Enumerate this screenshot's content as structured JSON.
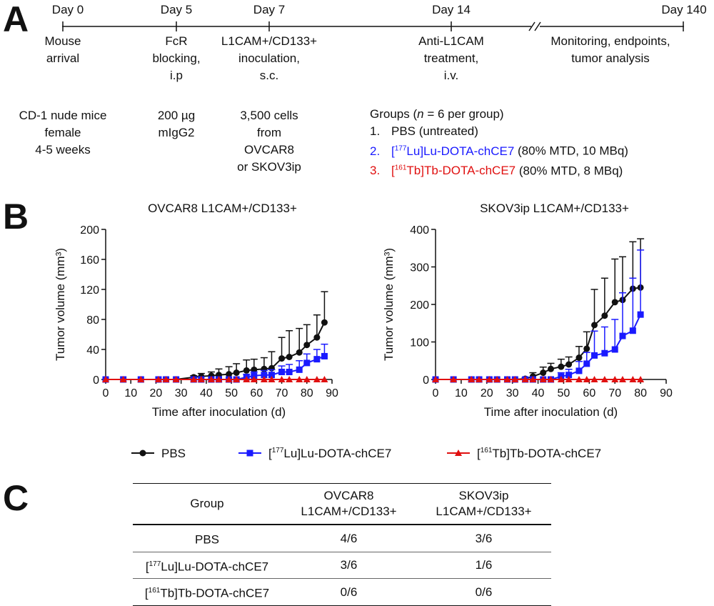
{
  "panels": {
    "a": "A",
    "b": "B",
    "c": "C"
  },
  "timeline": {
    "days": [
      {
        "label": "Day 0",
        "desc": [
          "Mouse",
          "arrival"
        ]
      },
      {
        "label": "Day 5",
        "desc": [
          "FcR",
          "blocking,",
          "i.p"
        ]
      },
      {
        "label": "Day 7",
        "desc": [
          "L1CAM+/CD133+",
          "inoculation,",
          "s.c."
        ]
      },
      {
        "label": "Day 14",
        "desc": [
          "Anti-L1CAM",
          "treatment,",
          "i.v."
        ]
      },
      {
        "label": "Day 140",
        "desc": [
          "Monitoring, endpoints,",
          "tumor analysis"
        ]
      }
    ],
    "break_mark": "//"
  },
  "cohort": {
    "mice": [
      "CD-1 nude mice",
      "female",
      "4-5 weeks"
    ],
    "antibody": [
      "200 µg",
      "mIgG2"
    ],
    "cells": [
      "3,500 cells",
      "from",
      "OVCAR8",
      "or SKOV3ip"
    ]
  },
  "groups": {
    "title_pre": "Groups (",
    "title_n": "n",
    "title_post": " = 6 per group)",
    "items": [
      {
        "num": "1.",
        "text": "PBS (untreated)",
        "color": "#111111"
      },
      {
        "num": "2.",
        "pre": "[",
        "sup": "177",
        "name": "Lu]Lu-DOTA-chCE7",
        "note": " (80% MTD, 10 MBq)",
        "color": "#1a1aff"
      },
      {
        "num": "3.",
        "pre": "[",
        "sup": "161",
        "name": "Tb]Tb-DOTA-chCE7",
        "note": " (80% MTD, 8 MBq)",
        "color": "#e01010"
      }
    ]
  },
  "chart_data": [
    {
      "type": "line",
      "title": "OVCAR8 L1CAM+/CD133+",
      "xlabel": "Time after inoculation (d)",
      "ylabel": "Tumor volume (mm³)",
      "xlim": [
        0,
        90
      ],
      "ylim": [
        0,
        200
      ],
      "xticks": [
        0,
        10,
        20,
        30,
        40,
        50,
        60,
        70,
        80,
        90
      ],
      "yticks": [
        0,
        40,
        80,
        120,
        160,
        200
      ],
      "series": [
        {
          "name": "PBS",
          "color": "#111111",
          "marker": "circle",
          "x": [
            0,
            7,
            14,
            21,
            24,
            28,
            35,
            38,
            42,
            45,
            49,
            52,
            56,
            59,
            63,
            66,
            70,
            73,
            77,
            80,
            84,
            87
          ],
          "y": [
            0,
            0,
            0,
            0,
            0,
            0,
            3,
            4,
            5,
            6,
            7,
            9,
            12,
            13,
            14,
            15,
            28,
            30,
            36,
            46,
            56,
            76
          ],
          "err": [
            0,
            0,
            0,
            0,
            0,
            0,
            2,
            4,
            5,
            8,
            10,
            12,
            14,
            14,
            15,
            22,
            28,
            35,
            32,
            27,
            30,
            41
          ]
        },
        {
          "name": "[177Lu]Lu-DOTA-chCE7",
          "color": "#1a1aff",
          "marker": "square",
          "x": [
            0,
            7,
            14,
            21,
            24,
            28,
            35,
            38,
            42,
            45,
            49,
            52,
            56,
            59,
            63,
            66,
            70,
            73,
            77,
            80,
            84,
            87
          ],
          "y": [
            0,
            0,
            0,
            0,
            0,
            0,
            0,
            0,
            0,
            0,
            0,
            0,
            3,
            5,
            6,
            6,
            10,
            10,
            13,
            22,
            27,
            31
          ],
          "err": [
            0,
            0,
            0,
            0,
            0,
            0,
            0,
            0,
            0,
            0,
            0,
            0,
            4,
            5,
            6,
            7,
            8,
            10,
            12,
            12,
            13,
            16
          ]
        },
        {
          "name": "[161Tb]Tb-DOTA-chCE7",
          "color": "#e01010",
          "marker": "triangle",
          "x": [
            0,
            7,
            14,
            21,
            24,
            28,
            35,
            38,
            42,
            45,
            49,
            52,
            56,
            59,
            63,
            66,
            70,
            73,
            77,
            80,
            84,
            87
          ],
          "y": [
            0,
            0,
            0,
            0,
            0,
            0,
            0,
            0,
            0,
            0,
            0,
            0,
            0,
            0,
            0,
            0,
            0,
            0,
            0,
            0,
            0,
            0
          ],
          "err": [
            0,
            0,
            0,
            0,
            0,
            0,
            0,
            0,
            0,
            0,
            0,
            0,
            0,
            0,
            0,
            0,
            0,
            0,
            0,
            0,
            0,
            0
          ]
        }
      ]
    },
    {
      "type": "line",
      "title": "SKOV3ip L1CAM+/CD133+",
      "xlabel": "Time after inoculation (d)",
      "ylabel": "Tumor volume (mm³)",
      "xlim": [
        0,
        90
      ],
      "ylim": [
        0,
        400
      ],
      "xticks": [
        0,
        10,
        20,
        30,
        40,
        50,
        60,
        70,
        80,
        90
      ],
      "yticks": [
        0,
        100,
        200,
        300,
        400
      ],
      "series": [
        {
          "name": "PBS",
          "color": "#111111",
          "marker": "circle",
          "x": [
            0,
            7,
            14,
            17,
            21,
            24,
            28,
            31,
            35,
            38,
            42,
            45,
            49,
            52,
            56,
            59,
            62,
            66,
            70,
            73,
            77,
            80
          ],
          "y": [
            0,
            0,
            0,
            0,
            0,
            0,
            0,
            0,
            2,
            8,
            18,
            28,
            34,
            40,
            58,
            82,
            145,
            170,
            206,
            212,
            242,
            245
          ],
          "err": [
            0,
            0,
            0,
            0,
            0,
            0,
            0,
            0,
            3,
            10,
            15,
            15,
            20,
            20,
            30,
            45,
            95,
            100,
            115,
            115,
            125,
            130
          ]
        },
        {
          "name": "[177Lu]Lu-DOTA-chCE7",
          "color": "#1a1aff",
          "marker": "square",
          "x": [
            0,
            7,
            14,
            17,
            21,
            24,
            28,
            31,
            35,
            38,
            42,
            45,
            49,
            52,
            56,
            59,
            62,
            66,
            70,
            73,
            77,
            80
          ],
          "y": [
            0,
            0,
            0,
            0,
            0,
            0,
            0,
            0,
            0,
            0,
            0,
            0,
            8,
            12,
            23,
            42,
            64,
            70,
            80,
            116,
            130,
            173
          ],
          "err": [
            0,
            0,
            0,
            0,
            0,
            0,
            0,
            0,
            0,
            0,
            0,
            0,
            10,
            15,
            25,
            30,
            65,
            70,
            80,
            115,
            140,
            172
          ]
        },
        {
          "name": "[161Tb]Tb-DOTA-chCE7",
          "color": "#e01010",
          "marker": "triangle",
          "x": [
            0,
            7,
            14,
            17,
            21,
            24,
            28,
            31,
            35,
            38,
            42,
            45,
            49,
            52,
            56,
            59,
            62,
            66,
            70,
            73,
            77,
            80
          ],
          "y": [
            0,
            0,
            0,
            0,
            0,
            0,
            0,
            0,
            0,
            0,
            0,
            0,
            0,
            0,
            0,
            0,
            0,
            0,
            0,
            0,
            0,
            0
          ],
          "err": [
            0,
            0,
            0,
            0,
            0,
            0,
            0,
            0,
            0,
            0,
            0,
            0,
            0,
            0,
            0,
            0,
            0,
            0,
            0,
            0,
            0,
            0
          ]
        }
      ]
    }
  ],
  "legend": [
    {
      "marker": "circle",
      "color": "#111111",
      "text": "PBS"
    },
    {
      "marker": "square",
      "color": "#1a1aff",
      "pre": "[",
      "sup": "177",
      "text": "Lu]Lu-DOTA-chCE7"
    },
    {
      "marker": "triangle",
      "color": "#e01010",
      "pre": "[",
      "sup": "161",
      "text": "Tb]Tb-DOTA-chCE7"
    }
  ],
  "table": {
    "headers": {
      "group": "Group",
      "ovcar": [
        "OVCAR8",
        "L1CAM+/CD133+"
      ],
      "skov": [
        "SKOV3ip",
        "L1CAM+/CD133+"
      ]
    },
    "rows": [
      {
        "group": "PBS",
        "pre": "",
        "sup": "",
        "ovcar": "4/6",
        "skov": "3/6"
      },
      {
        "group": "Lu]Lu-DOTA-chCE7",
        "pre": "[",
        "sup": "177",
        "ovcar": "3/6",
        "skov": "1/6"
      },
      {
        "group": "Tb]Tb-DOTA-chCE7",
        "pre": "[",
        "sup": "161",
        "ovcar": "0/6",
        "skov": "0/6"
      }
    ]
  }
}
